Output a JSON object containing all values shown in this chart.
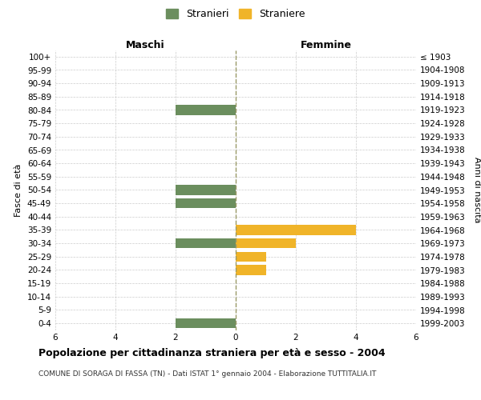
{
  "age_groups": [
    "100+",
    "95-99",
    "90-94",
    "85-89",
    "80-84",
    "75-79",
    "70-74",
    "65-69",
    "60-64",
    "55-59",
    "50-54",
    "45-49",
    "40-44",
    "35-39",
    "30-34",
    "25-29",
    "20-24",
    "15-19",
    "10-14",
    "5-9",
    "0-4"
  ],
  "birth_years": [
    "≤ 1903",
    "1904-1908",
    "1909-1913",
    "1914-1918",
    "1919-1923",
    "1924-1928",
    "1929-1933",
    "1934-1938",
    "1939-1943",
    "1944-1948",
    "1949-1953",
    "1954-1958",
    "1959-1963",
    "1964-1968",
    "1969-1973",
    "1974-1978",
    "1979-1983",
    "1984-1988",
    "1989-1993",
    "1994-1998",
    "1999-2003"
  ],
  "males": [
    0,
    0,
    0,
    0,
    2,
    0,
    0,
    0,
    0,
    0,
    2,
    2,
    0,
    0,
    2,
    0,
    0,
    0,
    0,
    0,
    2
  ],
  "females": [
    0,
    0,
    0,
    0,
    0,
    0,
    0,
    0,
    0,
    0,
    0,
    0,
    0,
    4,
    2,
    1,
    1,
    0,
    0,
    0,
    0
  ],
  "male_color": "#6b8e5e",
  "female_color": "#f0b429",
  "title": "Popolazione per cittadinanza straniera per età e sesso - 2004",
  "subtitle": "COMUNE DI SORAGA DI FASSA (TN) - Dati ISTAT 1° gennaio 2004 - Elaborazione TUTTITALIA.IT",
  "ylabel_left": "Fasce di età",
  "ylabel_right": "Anni di nascita",
  "xlabel_left": "Maschi",
  "xlabel_right": "Femmine",
  "legend_male": "Stranieri",
  "legend_female": "Straniere",
  "xlim": 6,
  "background_color": "#ffffff",
  "grid_color": "#cccccc"
}
